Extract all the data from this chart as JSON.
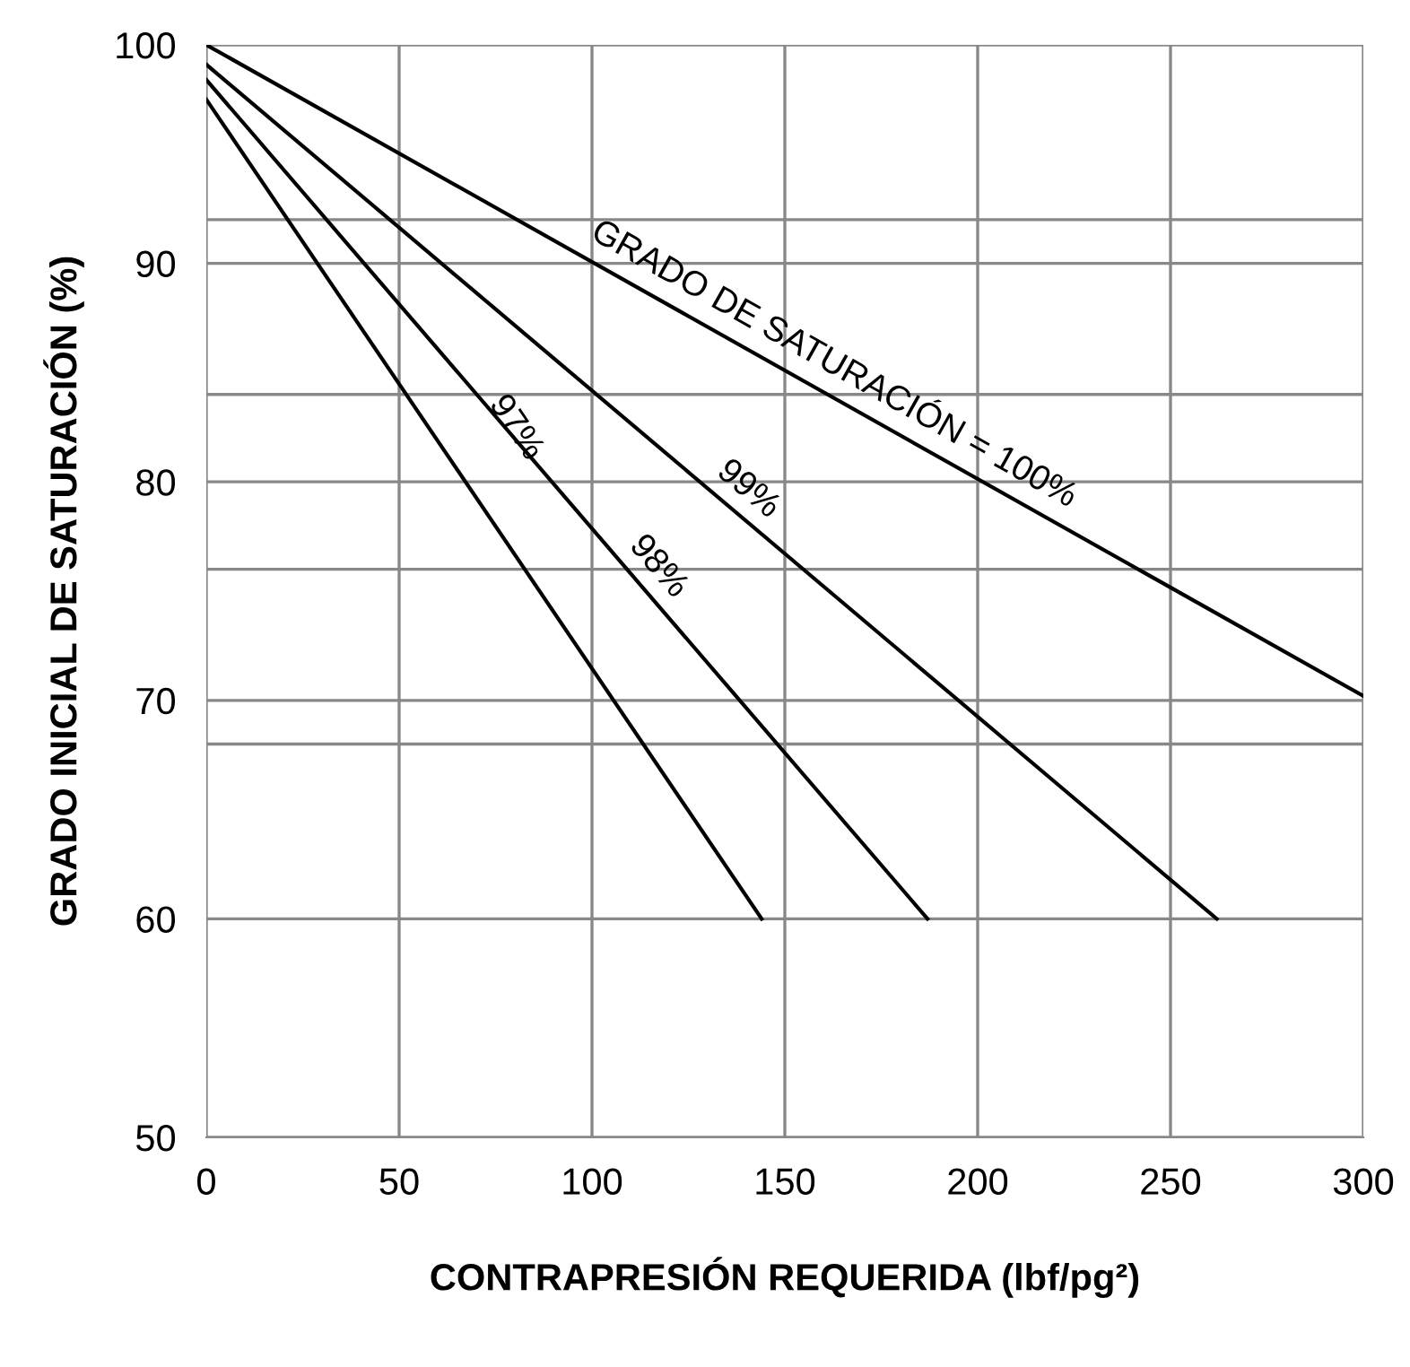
{
  "chart_data": {
    "type": "line",
    "xlabel": "CONTRAPRESIÓN REQUERIDA (lbf/pg²)",
    "ylabel": "GRADO INICIAL DE SATURACIÓN (%)",
    "series": [
      {
        "x": [
          0,
          300
        ],
        "values": [
          100,
          70.2
        ],
        "color": "#000000"
      },
      {
        "x": [
          0,
          262
        ],
        "values": [
          99.1,
          60
        ],
        "color": "#000000"
      },
      {
        "x": [
          0,
          187
        ],
        "values": [
          98.4,
          60
        ],
        "color": "#000000"
      },
      {
        "x": [
          0,
          144
        ],
        "values": [
          97.5,
          60
        ],
        "color": "#000000"
      }
    ],
    "annotations": [
      "GRADO DE SATURACIÓN = 100%",
      "99%",
      "98%",
      "97%"
    ],
    "xlim": [
      0,
      300
    ],
    "xticks": [
      0,
      50,
      100,
      150,
      200,
      250,
      300
    ],
    "ylim": [
      50,
      100
    ],
    "yticks": [
      50,
      60,
      {
        "value": 68,
        "label": null
      },
      70,
      {
        "value": 76,
        "label": null
      },
      80,
      {
        "value": 84,
        "label": null
      },
      90,
      {
        "value": 92,
        "label": null
      },
      100
    ],
    "grid": true,
    "legend": false,
    "marker": "none",
    "line_style": "solid"
  }
}
